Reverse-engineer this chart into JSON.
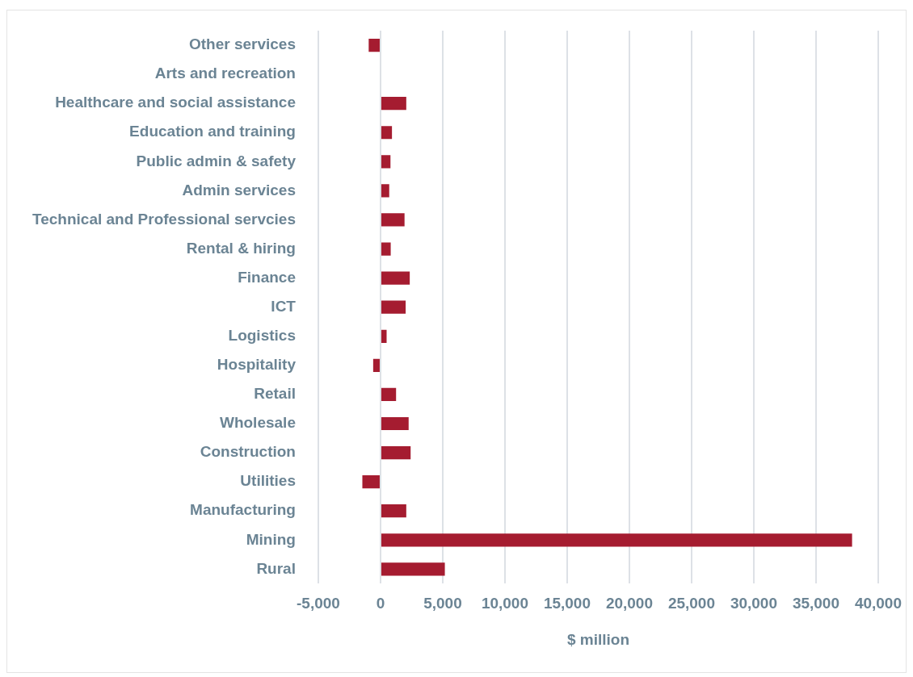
{
  "chart_data": {
    "type": "bar",
    "orientation": "horizontal",
    "xlabel": "$ million",
    "categories": [
      "Other services",
      "Arts and recreation",
      "Healthcare and social assistance",
      "Education and training",
      "Public admin & safety",
      "Admin services",
      "Technical and Professional servcies",
      "Rental & hiring",
      "Finance",
      "ICT",
      "Logistics",
      "Hospitality",
      "Retail",
      "Wholesale",
      "Construction",
      "Utilities",
      "Manufacturing",
      "Mining",
      "Rural"
    ],
    "values": [
      -950,
      0,
      2070,
      920,
      800,
      700,
      1930,
      820,
      2350,
      2020,
      490,
      -590,
      1250,
      2260,
      2420,
      -1460,
      2070,
      37900,
      5170
    ],
    "color": "#a51c30",
    "xlim": [
      -5000,
      40000
    ],
    "xticks": [
      {
        "value": -5000,
        "label": "-5,000"
      },
      0,
      {
        "value": 5000,
        "label": "5,000"
      },
      {
        "value": 10000,
        "label": "10,000"
      },
      {
        "value": 15000,
        "label": "15,000"
      },
      {
        "value": 20000,
        "label": "20,000"
      },
      {
        "value": 25000,
        "label": "25,000"
      },
      {
        "value": 30000,
        "label": "30,000"
      },
      {
        "value": 35000,
        "label": "35,000"
      },
      {
        "value": 40000,
        "label": "40,000"
      }
    ],
    "grid": "x",
    "legend": false
  }
}
